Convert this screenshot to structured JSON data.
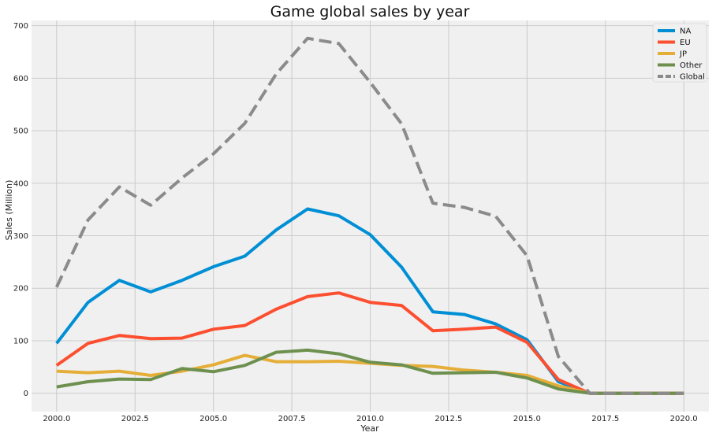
{
  "chart_data": {
    "type": "line",
    "title": "Game global sales by year",
    "xlabel": "Year",
    "ylabel": "Sales (Million)",
    "xlim": [
      1999.2,
      2020.8
    ],
    "ylim": [
      -35,
      710
    ],
    "xticks": [
      2000.0,
      2002.5,
      2005.0,
      2007.5,
      2010.0,
      2012.5,
      2015.0,
      2017.5,
      2020.0
    ],
    "xtick_labels": [
      "2000.0",
      "2002.5",
      "2005.0",
      "2007.5",
      "2010.0",
      "2012.5",
      "2015.0",
      "2017.5",
      "2020.0"
    ],
    "yticks": [
      0,
      100,
      200,
      300,
      400,
      500,
      600,
      700
    ],
    "ytick_labels": [
      "0",
      "100",
      "200",
      "300",
      "400",
      "500",
      "600",
      "700"
    ],
    "grid": true,
    "legend_position": "top-right",
    "x": [
      2000,
      2001,
      2002,
      2003,
      2004,
      2005,
      2006,
      2007,
      2008,
      2009,
      2010,
      2011,
      2012,
      2013,
      2014,
      2015,
      2016,
      2017,
      2018,
      2019,
      2020
    ],
    "series": [
      {
        "name": "NA",
        "color": "#008fd5",
        "dash": "solid",
        "values": [
          95,
          173,
          215,
          193,
          215,
          241,
          261,
          311,
          351,
          338,
          302,
          240,
          155,
          150,
          132,
          102,
          22,
          0,
          0,
          0,
          0
        ]
      },
      {
        "name": "EU",
        "color": "#fc4f30",
        "dash": "solid",
        "values": [
          53,
          95,
          110,
          104,
          105,
          122,
          129,
          160,
          184,
          191,
          173,
          167,
          119,
          122,
          126,
          97,
          26,
          0,
          0,
          0,
          0
        ]
      },
      {
        "name": "JP",
        "color": "#e5ae38",
        "dash": "solid",
        "values": [
          42,
          39,
          42,
          34,
          42,
          54,
          72,
          60,
          60,
          61,
          57,
          53,
          51,
          44,
          40,
          34,
          14,
          0,
          0,
          0,
          0
        ]
      },
      {
        "name": "Other",
        "color": "#6d904f",
        "dash": "solid",
        "values": [
          12,
          22,
          27,
          26,
          47,
          41,
          53,
          78,
          82,
          75,
          59,
          54,
          38,
          39,
          40,
          29,
          8,
          0,
          0,
          0,
          0
        ]
      },
      {
        "name": "Global",
        "color": "#8b8b8b",
        "dash": "dashed",
        "values": [
          202,
          330,
          393,
          358,
          410,
          456,
          514,
          608,
          676,
          666,
          592,
          513,
          362,
          354,
          337,
          262,
          70,
          0,
          0,
          0,
          0
        ]
      }
    ]
  }
}
